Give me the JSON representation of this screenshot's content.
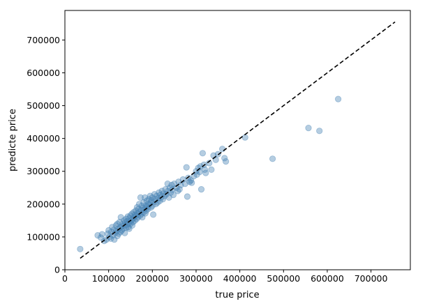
{
  "chart_data": {
    "type": "scatter",
    "title": "",
    "xlabel": "true price",
    "ylabel": "predicte price",
    "xlim": [
      0,
      790000
    ],
    "ylim": [
      0,
      790000
    ],
    "xticks": [
      0,
      100000,
      200000,
      300000,
      400000,
      500000,
      600000,
      700000
    ],
    "yticks": [
      0,
      100000,
      200000,
      300000,
      400000,
      500000,
      600000,
      700000
    ],
    "xtick_labels": [
      "0",
      "100000",
      "200000",
      "300000",
      "400000",
      "500000",
      "600000",
      "700000"
    ],
    "ytick_labels": [
      "0",
      "100000",
      "200000",
      "300000",
      "400000",
      "500000",
      "600000",
      "700000"
    ],
    "grid": false,
    "point_color": "#4682b4",
    "point_alpha": 0.4,
    "reference_line": {
      "style": "dashed",
      "color": "#000000",
      "x": [
        35000,
        755000
      ],
      "y": [
        35000,
        755000
      ]
    },
    "points": [
      [
        35000,
        63000
      ],
      [
        75000,
        105000
      ],
      [
        82000,
        98000
      ],
      [
        85000,
        108000
      ],
      [
        90000,
        88000
      ],
      [
        95000,
        92000
      ],
      [
        98000,
        110000
      ],
      [
        100000,
        120000
      ],
      [
        102000,
        100000
      ],
      [
        105000,
        95000
      ],
      [
        106000,
        115000
      ],
      [
        108000,
        130000
      ],
      [
        110000,
        105000
      ],
      [
        112000,
        122000
      ],
      [
        113000,
        92000
      ],
      [
        115000,
        112000
      ],
      [
        117000,
        135000
      ],
      [
        118000,
        118000
      ],
      [
        120000,
        140000
      ],
      [
        120000,
        103000
      ],
      [
        122000,
        125000
      ],
      [
        123000,
        110000
      ],
      [
        125000,
        145000
      ],
      [
        126000,
        128000
      ],
      [
        127000,
        115000
      ],
      [
        128000,
        160000
      ],
      [
        130000,
        132000
      ],
      [
        130000,
        120000
      ],
      [
        132000,
        140000
      ],
      [
        133000,
        125000
      ],
      [
        135000,
        150000
      ],
      [
        136000,
        135000
      ],
      [
        137000,
        112000
      ],
      [
        138000,
        145000
      ],
      [
        140000,
        128000
      ],
      [
        140000,
        155000
      ],
      [
        142000,
        138000
      ],
      [
        143000,
        148000
      ],
      [
        144000,
        162000
      ],
      [
        145000,
        130000
      ],
      [
        146000,
        142000
      ],
      [
        147000,
        125000
      ],
      [
        148000,
        158000
      ],
      [
        150000,
        165000
      ],
      [
        150000,
        140000
      ],
      [
        152000,
        150000
      ],
      [
        153000,
        170000
      ],
      [
        154000,
        135000
      ],
      [
        155000,
        155000
      ],
      [
        156000,
        145000
      ],
      [
        157000,
        175000
      ],
      [
        158000,
        160000
      ],
      [
        160000,
        150000
      ],
      [
        160000,
        168000
      ],
      [
        162000,
        180000
      ],
      [
        163000,
        165000
      ],
      [
        164000,
        155000
      ],
      [
        165000,
        190000
      ],
      [
        166000,
        172000
      ],
      [
        167000,
        160000
      ],
      [
        168000,
        185000
      ],
      [
        170000,
        175000
      ],
      [
        170000,
        200000
      ],
      [
        172000,
        165000
      ],
      [
        173000,
        220000
      ],
      [
        174000,
        182000
      ],
      [
        175000,
        170000
      ],
      [
        176000,
        195000
      ],
      [
        177000,
        160000
      ],
      [
        178000,
        188000
      ],
      [
        180000,
        175000
      ],
      [
        180000,
        205000
      ],
      [
        182000,
        185000
      ],
      [
        183000,
        220000
      ],
      [
        184000,
        172000
      ],
      [
        185000,
        195000
      ],
      [
        186000,
        180000
      ],
      [
        187000,
        210000
      ],
      [
        188000,
        190000
      ],
      [
        190000,
        200000
      ],
      [
        190000,
        185000
      ],
      [
        192000,
        215000
      ],
      [
        193000,
        198000
      ],
      [
        195000,
        225000
      ],
      [
        196000,
        205000
      ],
      [
        197000,
        190000
      ],
      [
        198000,
        212000
      ],
      [
        200000,
        195000
      ],
      [
        200000,
        220000
      ],
      [
        202000,
        168000
      ],
      [
        204000,
        208000
      ],
      [
        205000,
        230000
      ],
      [
        207000,
        215000
      ],
      [
        208000,
        200000
      ],
      [
        210000,
        225000
      ],
      [
        212000,
        205000
      ],
      [
        214000,
        218000
      ],
      [
        215000,
        235000
      ],
      [
        217000,
        210000
      ],
      [
        218000,
        228000
      ],
      [
        220000,
        220000
      ],
      [
        222000,
        240000
      ],
      [
        224000,
        215000
      ],
      [
        225000,
        232000
      ],
      [
        228000,
        225000
      ],
      [
        230000,
        245000
      ],
      [
        232000,
        230000
      ],
      [
        235000,
        262000
      ],
      [
        236000,
        240000
      ],
      [
        238000,
        220000
      ],
      [
        240000,
        250000
      ],
      [
        242000,
        235000
      ],
      [
        244000,
        258000
      ],
      [
        246000,
        245000
      ],
      [
        248000,
        228000
      ],
      [
        250000,
        262000
      ],
      [
        255000,
        250000
      ],
      [
        258000,
        240000
      ],
      [
        260000,
        268000
      ],
      [
        262000,
        245000
      ],
      [
        265000,
        258000
      ],
      [
        270000,
        275000
      ],
      [
        275000,
        262000
      ],
      [
        278000,
        312000
      ],
      [
        280000,
        223000
      ],
      [
        282000,
        280000
      ],
      [
        285000,
        268000
      ],
      [
        288000,
        272000
      ],
      [
        290000,
        265000
      ],
      [
        295000,
        285000
      ],
      [
        300000,
        300000
      ],
      [
        302000,
        290000
      ],
      [
        305000,
        310000
      ],
      [
        308000,
        298000
      ],
      [
        310000,
        315000
      ],
      [
        312000,
        245000
      ],
      [
        315000,
        355000
      ],
      [
        318000,
        320000
      ],
      [
        320000,
        305000
      ],
      [
        322000,
        295000
      ],
      [
        330000,
        325000
      ],
      [
        335000,
        305000
      ],
      [
        340000,
        348000
      ],
      [
        345000,
        335000
      ],
      [
        350000,
        352000
      ],
      [
        360000,
        368000
      ],
      [
        365000,
        340000
      ],
      [
        368000,
        330000
      ],
      [
        412000,
        403000
      ],
      [
        475000,
        338000
      ],
      [
        557000,
        432000
      ],
      [
        582000,
        423000
      ],
      [
        625000,
        520000
      ]
    ]
  }
}
